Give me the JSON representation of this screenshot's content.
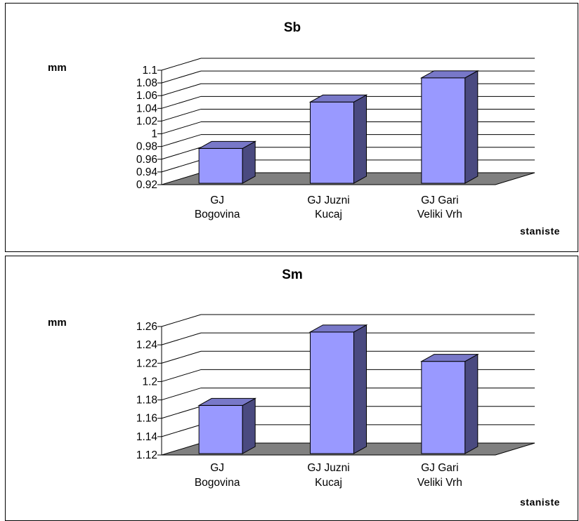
{
  "colors": {
    "bar_front": "#9999ff",
    "bar_side": "#4a4a80",
    "bar_top": "#7878c8",
    "floor": "#808080",
    "grid": "#000000"
  },
  "chart_data": [
    {
      "type": "bar",
      "title": "Sb",
      "ylabel": "mm",
      "xlabel": "staniste",
      "categories": [
        [
          "GJ",
          "Bogovina"
        ],
        [
          "GJ Juzni",
          "Kucaj"
        ],
        [
          "GJ Gari",
          "Veliki Vrh"
        ]
      ],
      "values": [
        0.977,
        1.05,
        1.088
      ],
      "ylim": [
        0.92,
        1.1
      ],
      "yticks": [
        0.92,
        0.94,
        0.96,
        0.98,
        1.0,
        1.02,
        1.04,
        1.06,
        1.08,
        1.1
      ],
      "ytick_labels": [
        "0.92",
        "0.94",
        "0.96",
        "0.98",
        "1",
        "1.02",
        "1.04",
        "1.06",
        "1.08",
        "1.1"
      ],
      "grid": true,
      "legend": "none"
    },
    {
      "type": "bar",
      "title": "Sm",
      "ylabel": "mm",
      "xlabel": "staniste",
      "categories": [
        [
          "GJ",
          "Bogovina"
        ],
        [
          "GJ Juzni",
          "Kucaj"
        ],
        [
          "GJ Gari",
          "Veliki Vrh"
        ]
      ],
      "values": [
        1.174,
        1.254,
        1.222
      ],
      "ylim": [
        1.12,
        1.26
      ],
      "yticks": [
        1.12,
        1.14,
        1.16,
        1.18,
        1.2,
        1.22,
        1.24,
        1.26
      ],
      "ytick_labels": [
        "1.12",
        "1.14",
        "1.16",
        "1.18",
        "1.2",
        "1.22",
        "1.24",
        "1.26"
      ],
      "grid": true,
      "legend": "none"
    }
  ]
}
